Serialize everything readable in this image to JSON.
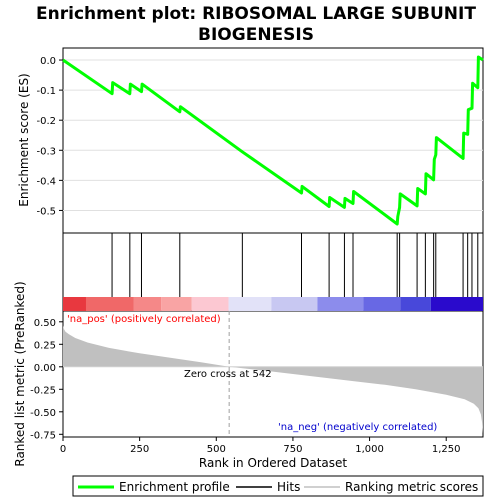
{
  "chart_data": {
    "type": "line",
    "title_lines": [
      "Enrichment plot: RIBOSOMAL LARGE SUBUNIT",
      "BIOGENESIS"
    ],
    "colors": {
      "enrichment_line": "#00ff00",
      "hit_line": "#000000",
      "metric_fill": "#c0c0c0",
      "zero_cross_line": "#a0a0a0",
      "pos_label": "#ff0000",
      "neg_label": "#0000cc"
    },
    "enrichment_panel": {
      "ylabel": "Enrichment score (ES)",
      "ylim": [
        -0.575,
        0.04
      ],
      "yticks": [
        0.0,
        -0.1,
        -0.2,
        -0.3,
        -0.4,
        -0.5
      ],
      "ytick_labels": [
        "0.0",
        "-0.1",
        "-0.2",
        "-0.3",
        "-0.4",
        "-0.5"
      ],
      "points": [
        [
          0,
          0.0
        ],
        [
          160,
          -0.112
        ],
        [
          162,
          -0.075
        ],
        [
          218,
          -0.112
        ],
        [
          220,
          -0.08
        ],
        [
          256,
          -0.105
        ],
        [
          258,
          -0.08
        ],
        [
          381,
          -0.172
        ],
        [
          383,
          -0.155
        ],
        [
          585,
          -0.305
        ],
        [
          778,
          -0.442
        ],
        [
          780,
          -0.42
        ],
        [
          868,
          -0.487
        ],
        [
          870,
          -0.457
        ],
        [
          918,
          -0.49
        ],
        [
          920,
          -0.46
        ],
        [
          946,
          -0.477
        ],
        [
          948,
          -0.437
        ],
        [
          1090,
          -0.545
        ],
        [
          1092,
          -0.52
        ],
        [
          1098,
          -0.49
        ],
        [
          1100,
          -0.445
        ],
        [
          1155,
          -0.485
        ],
        [
          1157,
          -0.427
        ],
        [
          1182,
          -0.445
        ],
        [
          1184,
          -0.378
        ],
        [
          1209,
          -0.398
        ],
        [
          1211,
          -0.33
        ],
        [
          1216,
          -0.315
        ],
        [
          1218,
          -0.258
        ],
        [
          1305,
          -0.327
        ],
        [
          1307,
          -0.243
        ],
        [
          1320,
          -0.247
        ],
        [
          1322,
          -0.165
        ],
        [
          1334,
          -0.16
        ],
        [
          1336,
          -0.077
        ],
        [
          1353,
          -0.092
        ],
        [
          1355,
          0.01
        ],
        [
          1370,
          0.0
        ]
      ]
    },
    "hits": [
      160,
      218,
      256,
      381,
      585,
      778,
      868,
      918,
      946,
      1090,
      1098,
      1155,
      1182,
      1209,
      1216,
      1305,
      1320,
      1334,
      1353
    ],
    "rank_colorbar": {
      "bands": [
        [
          0,
          75,
          "#e8383f"
        ],
        [
          75,
          230,
          "#f06868"
        ],
        [
          230,
          320,
          "#f58888"
        ],
        [
          320,
          420,
          "#f9a4a4"
        ],
        [
          420,
          540,
          "#fcc8d2"
        ],
        [
          540,
          680,
          "#e2e2f8"
        ],
        [
          680,
          830,
          "#c8c8f2"
        ],
        [
          830,
          980,
          "#8c8cec"
        ],
        [
          980,
          1100,
          "#6868e4"
        ],
        [
          1100,
          1200,
          "#4848da"
        ],
        [
          1200,
          1370,
          "#2a0acc"
        ]
      ]
    },
    "metric_panel": {
      "ylabel": "Ranked list metric (PreRanked)",
      "ylim": [
        -0.78,
        0.62
      ],
      "yticks": [
        0.5,
        0.25,
        0.0,
        -0.25,
        -0.5,
        -0.75
      ],
      "ytick_labels": [
        "0.50",
        "0.25",
        "0.00",
        "-0.25",
        "-0.50",
        "-0.75"
      ],
      "points": [
        [
          0,
          0.46
        ],
        [
          3,
          0.42
        ],
        [
          8,
          0.39
        ],
        [
          20,
          0.36
        ],
        [
          40,
          0.32
        ],
        [
          80,
          0.27
        ],
        [
          150,
          0.21
        ],
        [
          250,
          0.15
        ],
        [
          350,
          0.1
        ],
        [
          450,
          0.05
        ],
        [
          542,
          0.0
        ],
        [
          650,
          -0.04
        ],
        [
          750,
          -0.08
        ],
        [
          850,
          -0.12
        ],
        [
          950,
          -0.16
        ],
        [
          1050,
          -0.2
        ],
        [
          1150,
          -0.25
        ],
        [
          1250,
          -0.31
        ],
        [
          1310,
          -0.36
        ],
        [
          1340,
          -0.41
        ],
        [
          1355,
          -0.46
        ],
        [
          1363,
          -0.53
        ],
        [
          1367,
          -0.62
        ],
        [
          1370,
          -0.74
        ]
      ],
      "zero_cross_rank": 542,
      "zero_cross_label": "Zero cross at 542",
      "pos_label": "'na_pos' (positively correlated)",
      "neg_label": "'na_neg' (negatively correlated)"
    },
    "xaxis": {
      "xlabel": "Rank in Ordered Dataset",
      "xlim": [
        0,
        1370
      ],
      "xticks": [
        0,
        250,
        500,
        750,
        1000,
        1250
      ],
      "xtick_labels": [
        "0",
        "250",
        "500",
        "750",
        "1,000",
        "1,250"
      ]
    },
    "legend": {
      "entries": [
        "Enrichment profile",
        "Hits",
        "Ranking metric scores"
      ],
      "placement": "bottom"
    }
  }
}
